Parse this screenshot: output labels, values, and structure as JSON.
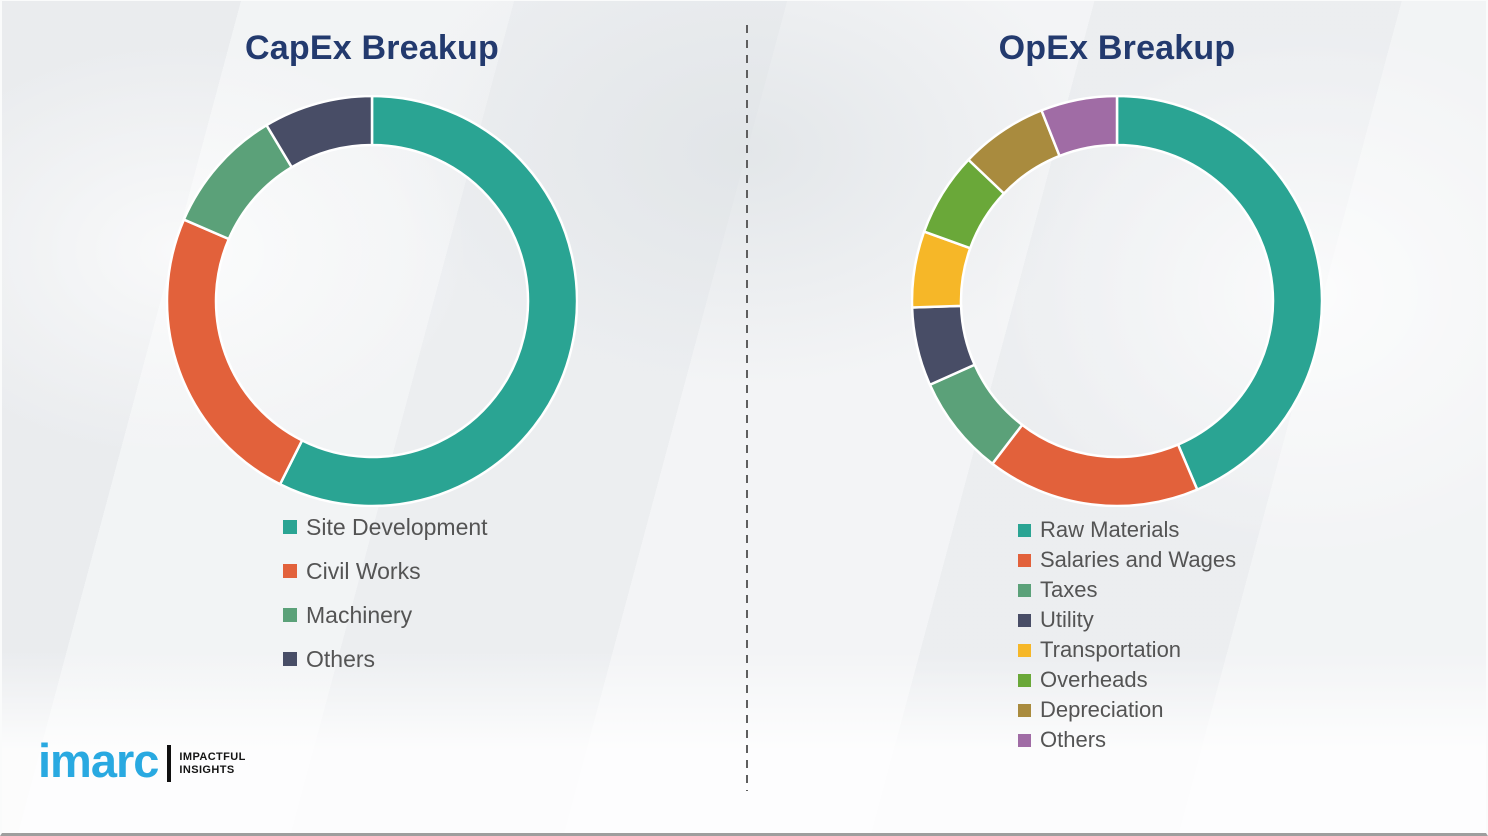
{
  "chart_data": [
    {
      "type": "pie",
      "subtype": "donut",
      "title": "CapEx Breakup",
      "categories": [
        "Site Development",
        "Civil Works",
        "Machinery",
        "Others"
      ],
      "values": [
        57.4,
        24.1,
        9.9,
        8.6
      ],
      "colors": [
        "#2aa493",
        "#e2613b",
        "#5ba179",
        "#484d66"
      ],
      "legend_position": "bottom-left",
      "start_angle_deg": 0,
      "direction": "clockwise",
      "donut_hole_ratio": 0.76,
      "data_labels_shown": false
    },
    {
      "type": "pie",
      "subtype": "donut",
      "title": "OpEx Breakup",
      "categories": [
        "Raw Materials",
        "Salaries and Wages",
        "Taxes",
        "Utility",
        "Transportation",
        "Overheads",
        "Depreciation",
        "Others"
      ],
      "values": [
        43.6,
        16.8,
        7.9,
        6.2,
        6.0,
        6.6,
        6.9,
        6.0
      ],
      "colors": [
        "#2aa493",
        "#e2613b",
        "#5ba179",
        "#484d66",
        "#f6b728",
        "#6aa839",
        "#a98b3e",
        "#a06ca5"
      ],
      "legend_position": "bottom-left",
      "start_angle_deg": 0,
      "direction": "clockwise",
      "donut_hole_ratio": 0.76,
      "data_labels_shown": false
    }
  ],
  "titles": {
    "left": "CapEx Breakup",
    "right": "OpEx Breakup"
  },
  "logo": {
    "brand": "imarc",
    "tagline_line1": "IMPACTFUL",
    "tagline_line2": "INSIGHTS",
    "brand_color": "#29a9e1"
  },
  "style_colors": {
    "title_text": "#233a6e",
    "legend_text": "#545454",
    "divider": "#5f5f5f",
    "background": "#f1f2f4",
    "segment_gap": "#ffffff"
  }
}
